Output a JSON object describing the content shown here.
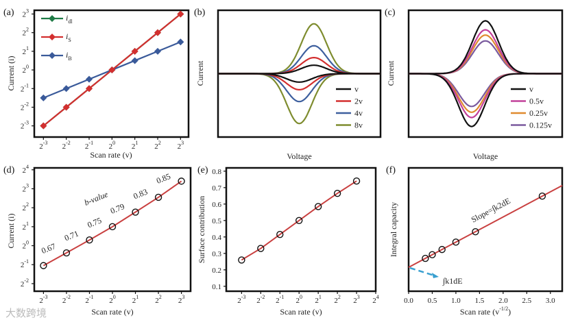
{
  "watermark": "大数跨境",
  "chart_data": [
    {
      "panel": "(a)",
      "type": "line",
      "xlabel": "Scan rate (v)",
      "ylabel": "Current (i)",
      "xscale": "log2",
      "yscale": "log2",
      "x_exponents": [
        -3,
        -2,
        -1,
        0,
        1,
        2,
        3
      ],
      "xticks": [
        "2^-3",
        "2^-2",
        "2^-1",
        "2^0",
        "2^1",
        "2^2",
        "2^3"
      ],
      "yticks": [
        "2^-3",
        "2^-2",
        "2^-1",
        "2^0",
        "2^1",
        "2^2",
        "2^3"
      ],
      "ytick_exponents": [
        -3,
        -2,
        -1,
        0,
        1,
        2,
        3
      ],
      "legend_position": "top-left",
      "series": [
        {
          "name": "i_dl",
          "color": "#1e7a45",
          "y_exponents": [
            -3,
            -2,
            -1,
            0,
            1,
            2,
            3
          ]
        },
        {
          "name": "i_S",
          "color": "#d32f2f",
          "y_exponents": [
            -3,
            -2,
            -1,
            0,
            1,
            2,
            3
          ]
        },
        {
          "name": "i_B",
          "color": "#3a5a9a",
          "y_exponents": [
            -1.5,
            -1,
            -0.5,
            0,
            0.5,
            1,
            1.5
          ]
        }
      ]
    },
    {
      "panel": "(b)",
      "type": "line",
      "xlabel": "Voltage",
      "ylabel": "Current",
      "legend_position": "bottom-right",
      "series": [
        {
          "name": "v",
          "color": "#111111",
          "peak_current": 1
        },
        {
          "name": "2v",
          "color": "#d32f2f",
          "peak_current": 1.9
        },
        {
          "name": "4v",
          "color": "#3d5f9e",
          "peak_current": 3.3
        },
        {
          "name": "8v",
          "color": "#7e8c2e",
          "peak_current": 5.9
        }
      ]
    },
    {
      "panel": "(c)",
      "type": "line",
      "xlabel": "Voltage",
      "ylabel": "Current",
      "legend_position": "bottom-right",
      "series": [
        {
          "name": "v",
          "color": "#111111",
          "peak_current": 1
        },
        {
          "name": "0.5v",
          "color": "#c2409a",
          "peak_current": 0.83
        },
        {
          "name": "0.25v",
          "color": "#e08a2e",
          "peak_current": 0.73
        },
        {
          "name": "0.125v",
          "color": "#7a5a9e",
          "peak_current": 0.62
        }
      ]
    },
    {
      "panel": "(d)",
      "type": "scatter",
      "xlabel": "Scan rate (v)",
      "ylabel": "Current (i)",
      "xscale": "log2",
      "yscale": "log2",
      "x_exponents": [
        -3,
        -2,
        -1,
        0,
        1,
        2,
        3
      ],
      "y_exponents": [
        -1.05,
        -0.38,
        0.3,
        1.0,
        1.77,
        2.55,
        3.4
      ],
      "xticks": [
        "2^-3",
        "2^-2",
        "2^-1",
        "2^0",
        "2^1",
        "2^2",
        "2^3"
      ],
      "yticks": [
        "2^-2",
        "2^-1",
        "2^0",
        "2^1",
        "2^2",
        "2^3",
        "2^4"
      ],
      "ytick_exponents": [
        -2,
        -1,
        0,
        1,
        2,
        3,
        4
      ],
      "annotation": "b-value",
      "b_values": [
        "0.67",
        "0.71",
        "0.75",
        "0.79",
        "0.83",
        "0.85"
      ]
    },
    {
      "panel": "(e)",
      "type": "scatter",
      "xlabel": "Scan rate (v)",
      "ylabel": "Surface contribution",
      "xscale": "log2",
      "x_exponents": [
        -3,
        -2,
        -1,
        0,
        1,
        2,
        3
      ],
      "y": [
        0.26,
        0.33,
        0.415,
        0.5,
        0.585,
        0.665,
        0.74
      ],
      "xticks": [
        "2^-3",
        "2^-2",
        "2^-1",
        "2^0",
        "2^1",
        "2^2",
        "2^3",
        "2^4"
      ],
      "xtick_exponents": [
        -3,
        -2,
        -1,
        0,
        1,
        2,
        3,
        4
      ],
      "yticks": [
        "0.1",
        "0.2",
        "0.3",
        "0.4",
        "0.5",
        "0.6",
        "0.7",
        "0.8"
      ],
      "ylim": [
        0.1,
        0.8
      ]
    },
    {
      "panel": "(f)",
      "type": "scatter",
      "xlabel": "Scan rate (v^-1/2)",
      "ylabel": "Integral capacity",
      "x": [
        0.354,
        0.5,
        0.707,
        1.0,
        1.414,
        2.828
      ],
      "intercept": 1.94,
      "slope": 2.04,
      "xticks": [
        "0.0",
        "0.5",
        "1.0",
        "1.5",
        "2.0",
        "2.5",
        "3.0"
      ],
      "xlim": [
        0,
        3.25
      ],
      "annotations": [
        "Slope=∫k2dE",
        "∫k1dE"
      ]
    }
  ]
}
